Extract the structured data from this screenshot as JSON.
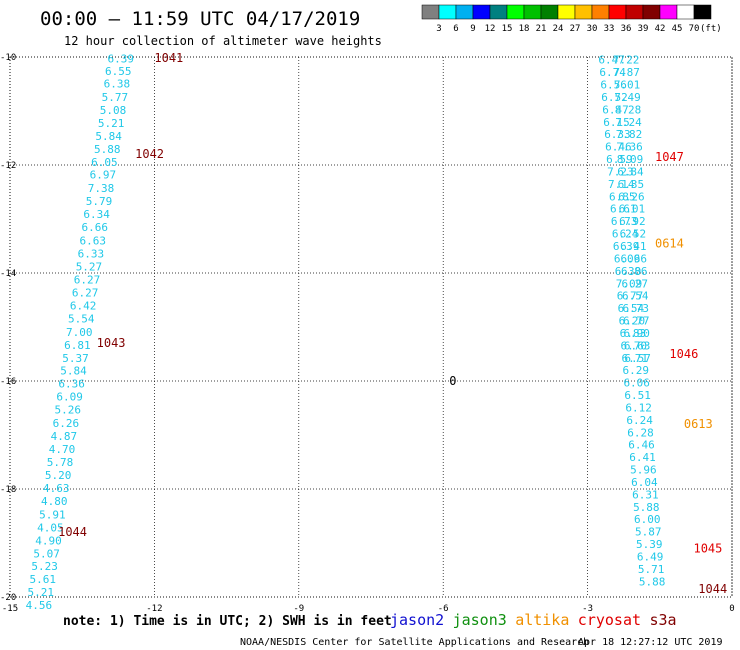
{
  "title": "00:00 – 11:59 UTC 04/17/2019",
  "subtitle": "12 hour collection of altimeter wave heights",
  "colorbar": {
    "colors": [
      "#808080",
      "#00ffff",
      "#00b0f0",
      "#0000ff",
      "#008080",
      "#00ff00",
      "#00c000",
      "#008000",
      "#ffff00",
      "#ffc000",
      "#ff8000",
      "#ff0000",
      "#c00000",
      "#800000",
      "#ff00ff",
      "#ffffff",
      "#000000"
    ],
    "labels": [
      "3",
      "6",
      "9",
      "12",
      "15",
      "18",
      "21",
      "24",
      "27",
      "30",
      "33",
      "36",
      "39",
      "42",
      "45",
      "70"
    ],
    "unit": "(ft)"
  },
  "footer": {
    "note": "note: 1) Time is in UTC; 2) SWH is in feet",
    "satellites": [
      {
        "name": "jason2",
        "color": "#1010d0"
      },
      {
        "name": "jason3",
        "color": "#109010"
      },
      {
        "name": "altika",
        "color": "#f09000"
      },
      {
        "name": "cryosat",
        "color": "#e00000"
      },
      {
        "name": "s3a",
        "color": "#800000"
      }
    ],
    "credit": "NOAA/NESDIS Center for Satellite Applications and Research",
    "timestamp": "Apr 18 12:27:12 UTC 2019"
  },
  "chart_data": {
    "type": "scatter",
    "title": "",
    "xlabel": "",
    "ylabel": "",
    "xlim": [
      -15,
      0
    ],
    "ylim": [
      -20,
      -10
    ],
    "grid": true,
    "x_ticks": [
      "-15",
      "-12",
      "-9",
      "-6",
      "-3",
      "0"
    ],
    "y_ticks": [
      "-10",
      "-12",
      "-14",
      "-16",
      "-18",
      "-20"
    ],
    "point_color": "#20c8e8",
    "series": [
      {
        "name": "",
        "points": [
          {
            "x": -12.7,
            "y": -10.03,
            "label": "6.39"
          },
          {
            "x": -12.75,
            "y": -10.26,
            "label": "6.55"
          },
          {
            "x": -12.78,
            "y": -10.49,
            "label": "6.38"
          },
          {
            "x": -12.82,
            "y": -10.74,
            "label": "5.77"
          },
          {
            "x": -12.86,
            "y": -10.98,
            "label": "5.08"
          },
          {
            "x": -12.9,
            "y": -11.22,
            "label": "5.21"
          },
          {
            "x": -12.95,
            "y": -11.46,
            "label": "5.84"
          },
          {
            "x": -12.98,
            "y": -11.7,
            "label": "5.88"
          },
          {
            "x": -13.04,
            "y": -11.94,
            "label": "6.05"
          },
          {
            "x": -13.07,
            "y": -12.18,
            "label": "6.97"
          },
          {
            "x": -13.11,
            "y": -12.43,
            "label": "7.38"
          },
          {
            "x": -13.15,
            "y": -12.67,
            "label": "5.79"
          },
          {
            "x": -13.2,
            "y": -12.91,
            "label": "6.34"
          },
          {
            "x": -13.24,
            "y": -13.15,
            "label": "6.66"
          },
          {
            "x": -13.28,
            "y": -13.4,
            "label": "6.63"
          },
          {
            "x": -13.32,
            "y": -13.64,
            "label": "6.33"
          },
          {
            "x": -13.36,
            "y": -13.88,
            "label": "5.27"
          },
          {
            "x": -13.4,
            "y": -14.12,
            "label": "6.27"
          },
          {
            "x": -13.44,
            "y": -14.36,
            "label": "6.27"
          },
          {
            "x": -13.48,
            "y": -14.6,
            "label": "6.42"
          },
          {
            "x": -13.52,
            "y": -14.84,
            "label": "5.54"
          },
          {
            "x": -13.56,
            "y": -15.09,
            "label": "7.00"
          },
          {
            "x": -13.6,
            "y": -15.33,
            "label": "6.81"
          },
          {
            "x": -13.64,
            "y": -15.57,
            "label": "5.37"
          },
          {
            "x": -13.68,
            "y": -15.81,
            "label": "5.84"
          },
          {
            "x": -13.72,
            "y": -16.05,
            "label": "6.36"
          },
          {
            "x": -13.76,
            "y": -16.29,
            "label": "6.09"
          },
          {
            "x": -13.8,
            "y": -16.53,
            "label": "5.26"
          },
          {
            "x": -13.84,
            "y": -16.78,
            "label": "6.26"
          },
          {
            "x": -13.88,
            "y": -17.02,
            "label": "4.87"
          },
          {
            "x": -13.92,
            "y": -17.26,
            "label": "4.70"
          },
          {
            "x": -13.96,
            "y": -17.5,
            "label": "5.78"
          },
          {
            "x": -14.0,
            "y": -17.74,
            "label": "5.20"
          },
          {
            "x": -14.04,
            "y": -17.98,
            "label": "4.63"
          },
          {
            "x": -14.08,
            "y": -18.22,
            "label": "4.80"
          },
          {
            "x": -14.12,
            "y": -18.47,
            "label": "5.91"
          },
          {
            "x": -14.16,
            "y": -18.71,
            "label": "4.05"
          },
          {
            "x": -14.2,
            "y": -18.95,
            "label": "4.90"
          },
          {
            "x": -14.24,
            "y": -19.19,
            "label": "5.07"
          },
          {
            "x": -14.28,
            "y": -19.43,
            "label": "5.23"
          },
          {
            "x": -14.32,
            "y": -19.67,
            "label": "5.61"
          },
          {
            "x": -14.36,
            "y": -19.91,
            "label": "5.21"
          },
          {
            "x": -14.4,
            "y": -20.15,
            "label": "4.56"
          }
        ]
      },
      {
        "name": "",
        "points": [
          {
            "x": -2.5,
            "y": -10.05,
            "label": "6.47"
          },
          {
            "x": -2.48,
            "y": -10.28,
            "label": "6.74"
          },
          {
            "x": -2.46,
            "y": -10.51,
            "label": "6.56"
          },
          {
            "x": -2.44,
            "y": -10.74,
            "label": "6.52"
          },
          {
            "x": -2.42,
            "y": -10.97,
            "label": "6.47"
          },
          {
            "x": -2.4,
            "y": -11.2,
            "label": "6.15"
          },
          {
            "x": -2.38,
            "y": -11.43,
            "label": "6.33"
          },
          {
            "x": -2.36,
            "y": -11.66,
            "label": "6.46"
          },
          {
            "x": -2.34,
            "y": -11.89,
            "label": "6.59"
          },
          {
            "x": -2.32,
            "y": -12.12,
            "label": "7.23"
          },
          {
            "x": -2.3,
            "y": -12.35,
            "label": "7.14"
          },
          {
            "x": -2.28,
            "y": -12.58,
            "label": "6.85"
          },
          {
            "x": -2.26,
            "y": -12.81,
            "label": "6.61"
          },
          {
            "x": -2.24,
            "y": -13.04,
            "label": "6.73"
          },
          {
            "x": -2.22,
            "y": -13.27,
            "label": "6.24"
          },
          {
            "x": -2.2,
            "y": -13.5,
            "label": "6.39"
          },
          {
            "x": -2.18,
            "y": -13.73,
            "label": "6.09"
          },
          {
            "x": -2.16,
            "y": -13.96,
            "label": "6.30"
          },
          {
            "x": -2.14,
            "y": -14.19,
            "label": "7.09"
          },
          {
            "x": -2.12,
            "y": -14.42,
            "label": "6.77"
          },
          {
            "x": -2.1,
            "y": -14.65,
            "label": "6.54"
          },
          {
            "x": -2.08,
            "y": -14.88,
            "label": "6.20"
          },
          {
            "x": -2.06,
            "y": -15.11,
            "label": "6.83"
          },
          {
            "x": -2.04,
            "y": -15.34,
            "label": "6.70"
          },
          {
            "x": -2.02,
            "y": -15.57,
            "label": "6.71"
          },
          {
            "x": -2.0,
            "y": -15.8,
            "label": "6.29"
          },
          {
            "x": -1.98,
            "y": -16.03,
            "label": "6.06"
          },
          {
            "x": -1.96,
            "y": -16.26,
            "label": "6.51"
          },
          {
            "x": -1.94,
            "y": -16.49,
            "label": "6.12"
          },
          {
            "x": -1.92,
            "y": -16.72,
            "label": "6.24"
          },
          {
            "x": -1.9,
            "y": -16.95,
            "label": "6.28"
          },
          {
            "x": -1.88,
            "y": -17.18,
            "label": "6.46"
          },
          {
            "x": -1.86,
            "y": -17.41,
            "label": "6.41"
          },
          {
            "x": -1.84,
            "y": -17.64,
            "label": "5.96"
          },
          {
            "x": -1.82,
            "y": -17.87,
            "label": "6.04"
          },
          {
            "x": -1.8,
            "y": -18.1,
            "label": "6.31"
          },
          {
            "x": -1.78,
            "y": -18.33,
            "label": "5.88"
          },
          {
            "x": -1.76,
            "y": -18.56,
            "label": "6.00"
          },
          {
            "x": -1.74,
            "y": -18.79,
            "label": "5.87"
          },
          {
            "x": -1.72,
            "y": -19.02,
            "label": "5.39"
          },
          {
            "x": -1.7,
            "y": -19.25,
            "label": "6.49"
          },
          {
            "x": -1.68,
            "y": -19.48,
            "label": "5.71"
          },
          {
            "x": -1.66,
            "y": -19.71,
            "label": "5.88"
          }
        ]
      },
      {
        "name": "",
        "points": [
          {
            "x": -2.2,
            "y": -10.05,
            "label": "7.22"
          },
          {
            "x": -2.19,
            "y": -10.28,
            "label": "7.87"
          },
          {
            "x": -2.18,
            "y": -10.51,
            "label": "7.01"
          },
          {
            "x": -2.17,
            "y": -10.74,
            "label": "7.49"
          },
          {
            "x": -2.16,
            "y": -10.97,
            "label": "8.28"
          },
          {
            "x": -2.15,
            "y": -11.2,
            "label": "7.24"
          },
          {
            "x": -2.14,
            "y": -11.43,
            "label": "7.82"
          },
          {
            "x": -2.13,
            "y": -11.66,
            "label": "7.36"
          },
          {
            "x": -2.12,
            "y": -11.89,
            "label": "8.09"
          },
          {
            "x": -2.11,
            "y": -12.12,
            "label": "6.84"
          },
          {
            "x": -2.1,
            "y": -12.35,
            "label": "6.35"
          },
          {
            "x": -2.09,
            "y": -12.58,
            "label": "6.26"
          },
          {
            "x": -2.08,
            "y": -12.81,
            "label": "6.01"
          },
          {
            "x": -2.07,
            "y": -13.04,
            "label": "6.92"
          },
          {
            "x": -2.06,
            "y": -13.27,
            "label": "6.52"
          },
          {
            "x": -2.05,
            "y": -13.5,
            "label": "6.41"
          },
          {
            "x": -2.04,
            "y": -13.73,
            "label": "6.66"
          },
          {
            "x": -2.03,
            "y": -13.96,
            "label": "6.86"
          },
          {
            "x": -2.02,
            "y": -14.19,
            "label": "6.27"
          },
          {
            "x": -2.01,
            "y": -14.42,
            "label": "6.54"
          },
          {
            "x": -2.0,
            "y": -14.65,
            "label": "6.73"
          },
          {
            "x": -1.99,
            "y": -14.88,
            "label": "6.77"
          },
          {
            "x": -1.98,
            "y": -15.11,
            "label": "6.90"
          },
          {
            "x": -1.97,
            "y": -15.34,
            "label": "6.63"
          },
          {
            "x": -1.96,
            "y": -15.57,
            "label": "6.57"
          }
        ]
      }
    ],
    "annotations": [
      {
        "text": "1041",
        "x": -11.7,
        "y": -10.02,
        "color": "#800000"
      },
      {
        "text": "1042",
        "x": -12.1,
        "y": -11.8,
        "color": "#800000"
      },
      {
        "text": "1043",
        "x": -12.9,
        "y": -15.3,
        "color": "#800000"
      },
      {
        "text": "1044",
        "x": -13.7,
        "y": -18.8,
        "color": "#800000"
      },
      {
        "text": "1047",
        "x": -1.3,
        "y": -11.85,
        "color": "#e00000"
      },
      {
        "text": "0614",
        "x": -1.3,
        "y": -13.45,
        "color": "#f09000"
      },
      {
        "text": "1046",
        "x": -1.0,
        "y": -15.5,
        "color": "#e00000"
      },
      {
        "text": "0613",
        "x": -0.7,
        "y": -16.8,
        "color": "#f09000"
      },
      {
        "text": "1045",
        "x": -0.5,
        "y": -19.1,
        "color": "#e00000"
      },
      {
        "text": "1044",
        "x": -0.4,
        "y": -19.85,
        "color": "#800000"
      },
      {
        "text": "0",
        "x": -5.8,
        "y": -16.0,
        "color": "#000000"
      }
    ]
  }
}
